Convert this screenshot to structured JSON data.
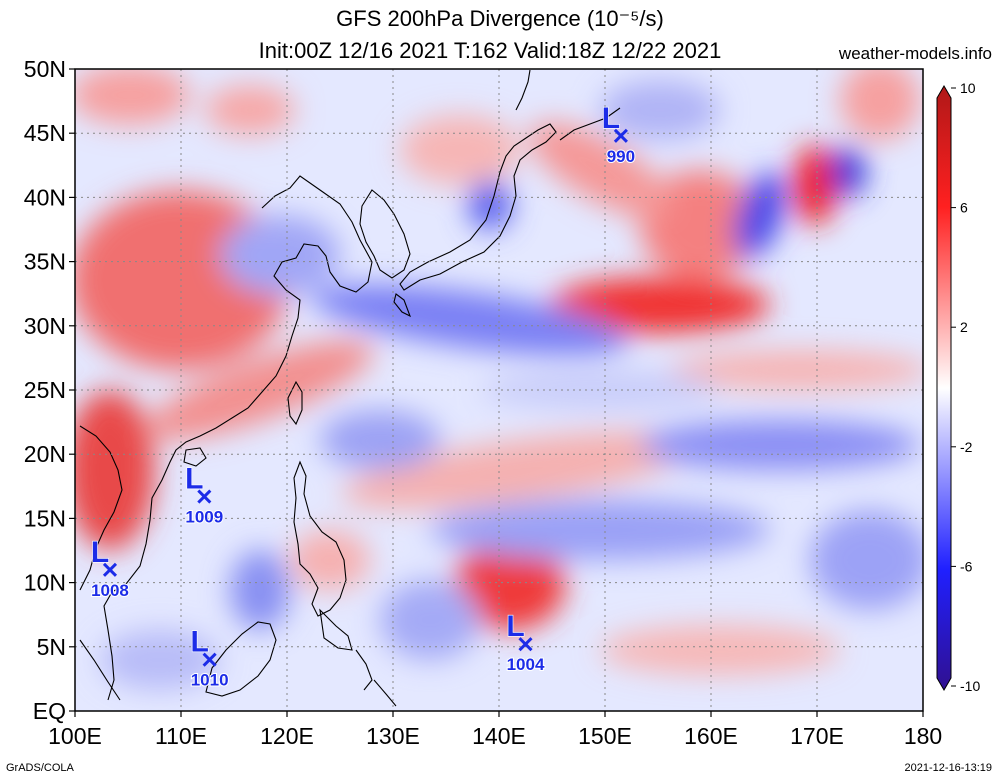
{
  "title": {
    "line1": "GFS 200hPa Divergence (10⁻⁵/s)",
    "line2": "Init:00Z 12/16 2021 T:162 Valid:18Z 12/22 2021"
  },
  "site": "weather-models.info",
  "axes": {
    "lat_labels": [
      "50N",
      "45N",
      "40N",
      "35N",
      "30N",
      "25N",
      "20N",
      "15N",
      "10N",
      "5N",
      "EQ"
    ],
    "lat_values": [
      50,
      45,
      40,
      35,
      30,
      25,
      20,
      15,
      10,
      5,
      0
    ],
    "lon_labels": [
      "100E",
      "110E",
      "120E",
      "130E",
      "140E",
      "150E",
      "160E",
      "170E",
      "180"
    ],
    "lon_values": [
      100,
      110,
      120,
      130,
      140,
      150,
      160,
      170,
      180
    ]
  },
  "colorbar": {
    "labels": [
      "10",
      "6",
      "2",
      "-2",
      "-6",
      "-10"
    ],
    "values": [
      10,
      6,
      2,
      -2,
      -6,
      -10
    ],
    "colors": {
      "max": "#c01818",
      "pos": "#ff2020",
      "neg": "#3030ff",
      "min": "#3010a0",
      "mid": "#ffffff"
    }
  },
  "lows": [
    {
      "letter": "L",
      "pressure": "990",
      "lon": 151.5,
      "lat": 44.8
    },
    {
      "letter": "L",
      "pressure": "1009",
      "lon": 112.2,
      "lat": 16.7
    },
    {
      "letter": "L",
      "pressure": "1008",
      "lon": 103.3,
      "lat": 11.0
    },
    {
      "letter": "L",
      "pressure": "1010",
      "lon": 112.7,
      "lat": 4.0
    },
    {
      "letter": "L",
      "pressure": "1004",
      "lon": 142.5,
      "lat": 5.2
    }
  ],
  "footer": {
    "left": "GrADS/COLA",
    "right": "2021-12-16-13:19"
  }
}
